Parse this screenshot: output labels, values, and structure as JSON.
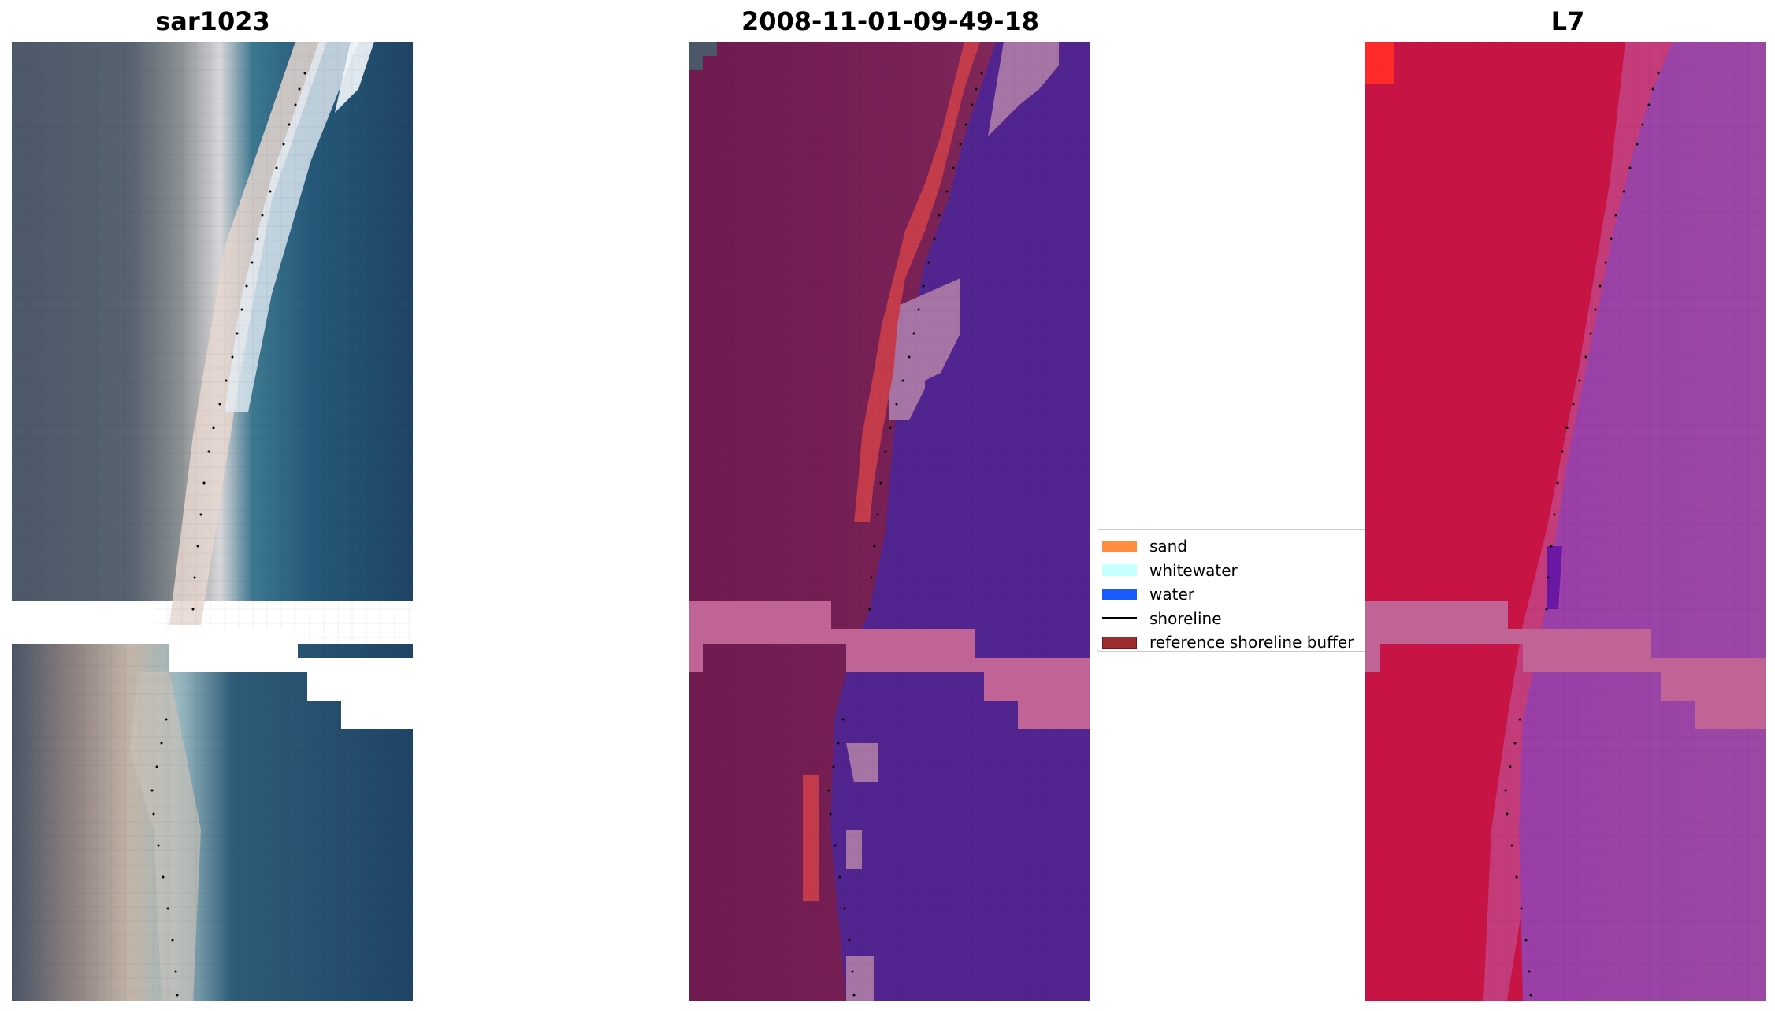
{
  "titles": {
    "left": "sar1023",
    "middle": "2008-11-01-09-49-18",
    "right": "L7"
  },
  "legend": {
    "items": [
      {
        "label": "sand",
        "color": "#ff8c3f",
        "kind": "patch"
      },
      {
        "label": "whitewater",
        "color": "#c8ffff",
        "kind": "patch"
      },
      {
        "label": "water",
        "color": "#1a5cff",
        "kind": "patch"
      },
      {
        "label": "shoreline",
        "color": "#000000",
        "kind": "line"
      },
      {
        "label": "reference shoreline buffer",
        "color": "#9b2d30",
        "kind": "patch"
      }
    ]
  },
  "colors": {
    "rgb_land": "#4a5a6c",
    "rgb_sea": "#224a6a",
    "class_land": "#6e1a50",
    "class_water": "#512490",
    "class_sand": "#c43c4c",
    "class_mask": "#bf6494",
    "class_whitewater": "#a775a5",
    "ndwi_land": "#c21240",
    "ndwi_water": "#9b44a4",
    "ndwi_mask": "#bf6494",
    "nodata": "#ffffff",
    "shoreline_dots": "#000000"
  }
}
